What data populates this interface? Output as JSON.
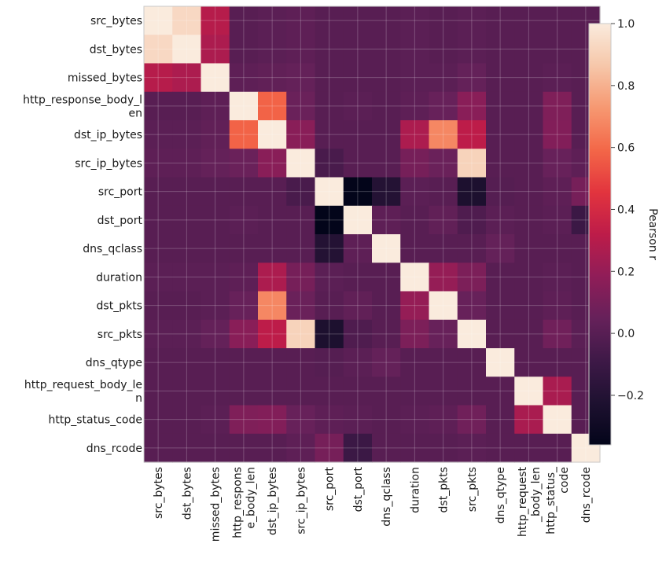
{
  "chart_data": {
    "type": "heatmap",
    "title": "",
    "xlabel": "",
    "ylabel": "",
    "grid": true,
    "colormap": "rocket",
    "colorbar": {
      "label": "Pearson r",
      "vmin": -0.36,
      "vmax": 1.0,
      "ticks": [
        1.0,
        0.8,
        0.6,
        0.4,
        0.2,
        0.0,
        -0.2
      ],
      "tick_labels": [
        "1.0",
        "0.8",
        "0.6",
        "0.4",
        "0.2",
        "0.0",
        "−0.2"
      ]
    },
    "row_labels": [
      [
        "src_bytes"
      ],
      [
        "dst_bytes"
      ],
      [
        "missed_bytes"
      ],
      [
        "http_response_body_l",
        "en"
      ],
      [
        "dst_ip_bytes"
      ],
      [
        "src_ip_bytes"
      ],
      [
        "src_port"
      ],
      [
        "dst_port"
      ],
      [
        "dns_qclass"
      ],
      [
        "duration"
      ],
      [
        "dst_pkts"
      ],
      [
        "src_pkts"
      ],
      [
        "dns_qtype"
      ],
      [
        "http_request_body_le",
        "n"
      ],
      [
        "http_status_code"
      ],
      [
        "dns_rcode"
      ]
    ],
    "col_labels": [
      [
        "src_bytes"
      ],
      [
        "dst_bytes"
      ],
      [
        "missed_bytes"
      ],
      [
        "http_respons",
        "e_body_len"
      ],
      [
        "dst_ip_bytes"
      ],
      [
        "src_ip_bytes"
      ],
      [
        "src_port"
      ],
      [
        "dst_port"
      ],
      [
        "dns_qclass"
      ],
      [
        "duration"
      ],
      [
        "dst_pkts"
      ],
      [
        "src_pkts"
      ],
      [
        "dns_qtype"
      ],
      [
        "http_request",
        "_body_len"
      ],
      [
        "http_status_",
        "code"
      ],
      [
        "dns_rcode"
      ]
    ],
    "values": [
      [
        1.0,
        0.93,
        0.3,
        0.0,
        0.01,
        0.02,
        0.0,
        0.0,
        0.0,
        0.01,
        0.0,
        0.01,
        0.0,
        0.0,
        0.0,
        0.0
      ],
      [
        0.93,
        1.0,
        0.27,
        0.0,
        0.01,
        0.02,
        0.0,
        0.0,
        0.0,
        0.01,
        0.0,
        0.01,
        0.0,
        0.0,
        0.0,
        0.0
      ],
      [
        0.3,
        0.27,
        1.0,
        0.02,
        0.03,
        0.04,
        0.0,
        0.0,
        0.0,
        0.01,
        0.01,
        0.04,
        0.0,
        0.0,
        0.01,
        0.0
      ],
      [
        0.0,
        0.0,
        0.02,
        1.0,
        0.58,
        0.06,
        0.0,
        0.01,
        0.0,
        0.02,
        0.05,
        0.16,
        0.0,
        0.0,
        0.13,
        0.0
      ],
      [
        0.01,
        0.01,
        0.03,
        0.58,
        1.0,
        0.16,
        0.0,
        0.0,
        0.0,
        0.27,
        0.68,
        0.32,
        0.0,
        0.0,
        0.14,
        0.0
      ],
      [
        0.02,
        0.02,
        0.04,
        0.06,
        0.16,
        1.0,
        -0.05,
        0.0,
        0.0,
        0.1,
        0.06,
        0.91,
        0.0,
        0.0,
        0.05,
        0.02
      ],
      [
        0.0,
        0.0,
        0.0,
        0.0,
        0.0,
        -0.05,
        1.0,
        -0.36,
        -0.2,
        0.01,
        0.0,
        -0.23,
        -0.01,
        0.0,
        0.02,
        0.1
      ],
      [
        0.0,
        0.0,
        0.0,
        0.01,
        0.0,
        0.0,
        -0.36,
        1.0,
        0.02,
        0.0,
        0.03,
        -0.03,
        0.01,
        0.0,
        0.01,
        -0.1
      ],
      [
        0.0,
        0.0,
        0.0,
        0.0,
        0.0,
        0.0,
        -0.2,
        0.02,
        1.0,
        0.0,
        0.0,
        0.0,
        0.04,
        0.0,
        0.0,
        0.0
      ],
      [
        0.01,
        0.01,
        0.01,
        0.02,
        0.27,
        0.1,
        0.01,
        0.0,
        0.0,
        1.0,
        0.2,
        0.12,
        0.0,
        0.0,
        0.01,
        0.0
      ],
      [
        0.0,
        0.0,
        0.01,
        0.05,
        0.68,
        0.06,
        0.0,
        0.03,
        0.0,
        0.2,
        1.0,
        0.05,
        0.0,
        0.0,
        0.02,
        0.0
      ],
      [
        0.01,
        0.01,
        0.04,
        0.16,
        0.32,
        0.91,
        -0.23,
        -0.03,
        0.0,
        0.12,
        0.05,
        1.0,
        0.0,
        0.0,
        0.08,
        0.01
      ],
      [
        0.0,
        0.0,
        0.0,
        0.0,
        0.0,
        0.0,
        -0.01,
        0.01,
        0.04,
        0.0,
        0.0,
        0.0,
        1.0,
        0.0,
        0.0,
        0.0
      ],
      [
        0.0,
        0.0,
        0.0,
        0.0,
        0.0,
        0.0,
        0.0,
        0.0,
        0.0,
        0.0,
        0.0,
        0.0,
        0.0,
        1.0,
        0.26,
        0.0
      ],
      [
        0.0,
        0.0,
        0.01,
        0.13,
        0.14,
        0.05,
        0.02,
        0.01,
        0.0,
        0.01,
        0.02,
        0.08,
        0.0,
        0.26,
        1.0,
        0.0
      ],
      [
        0.0,
        0.0,
        0.0,
        0.0,
        0.0,
        0.02,
        0.1,
        -0.1,
        0.0,
        0.0,
        0.0,
        0.01,
        0.0,
        0.0,
        0.0,
        1.0
      ]
    ]
  }
}
